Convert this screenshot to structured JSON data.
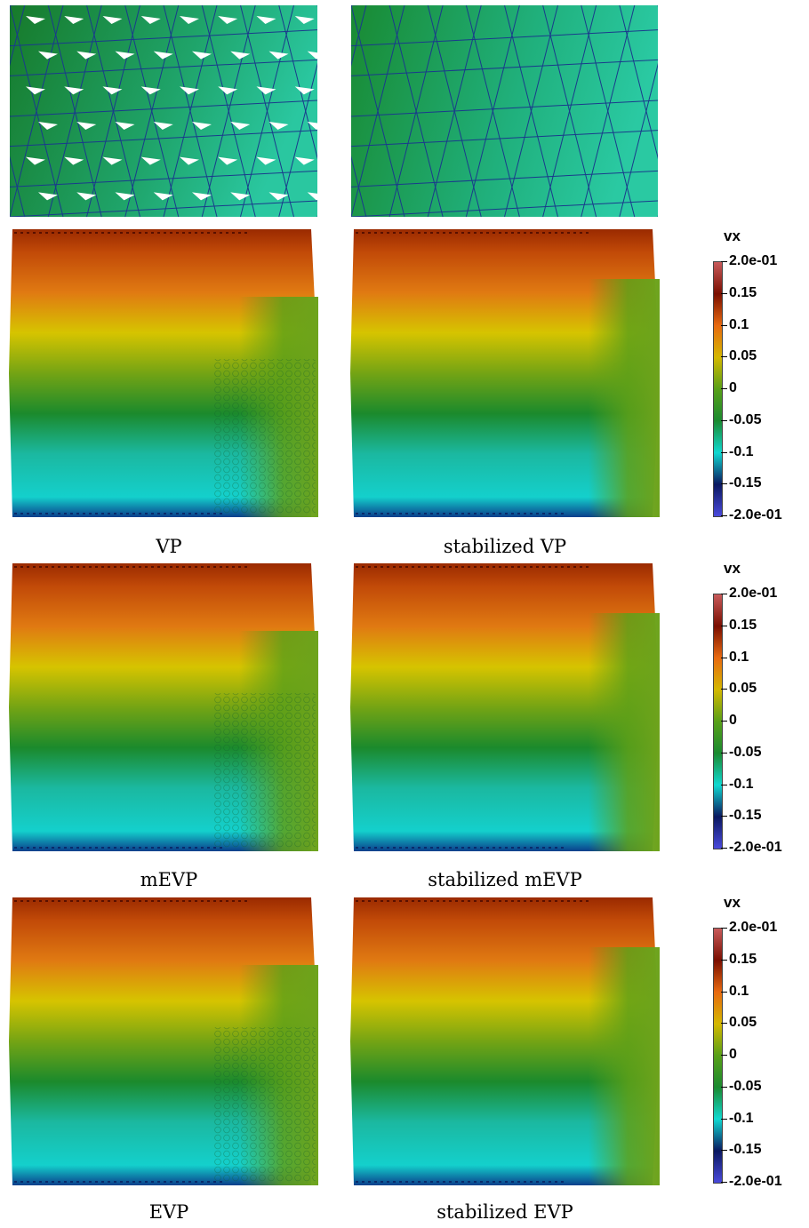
{
  "panels": [
    {
      "caption": "VP",
      "mesh_variant": "raw"
    },
    {
      "caption": "stabilized VP",
      "mesh_variant": "smooth"
    },
    {
      "caption": "mEVP",
      "mesh_variant": "raw"
    },
    {
      "caption": "stabilized mEVP",
      "mesh_variant": "smooth"
    },
    {
      "caption": "EVP",
      "mesh_variant": "raw"
    },
    {
      "caption": "stabilized EVP",
      "mesh_variant": "smooth"
    }
  ],
  "colorbar": {
    "title": "vx",
    "labels": [
      "2.0e-01",
      "0.15",
      "0.1",
      "0.05",
      "0",
      "-0.05",
      "-0.1",
      "-0.15",
      "-2.0e-01"
    ],
    "values": [
      0.2,
      0.15,
      0.1,
      0.05,
      0,
      -0.05,
      -0.1,
      -0.15,
      -0.2
    ],
    "colors": [
      "#c85a5a",
      "#7a0e00",
      "#e86a10",
      "#d4b800",
      "#58a018",
      "#1a8a30",
      "#10d8d0",
      "#0a1860",
      "#4a4adc"
    ]
  },
  "colors": {
    "mesh_green_dark": "#1a7a2c",
    "mesh_green_light": "#2ac79a",
    "mesh_lines": "#1a3a8c"
  }
}
